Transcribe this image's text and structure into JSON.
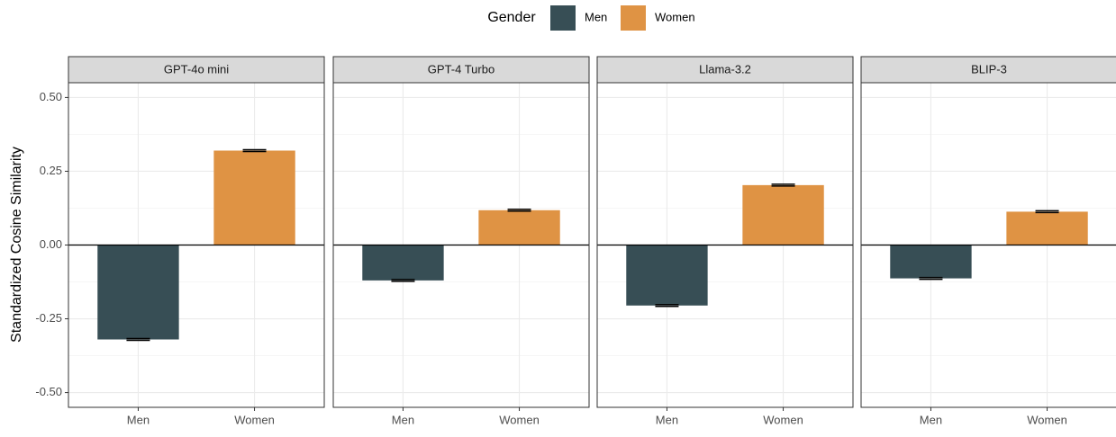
{
  "legend": {
    "title": "Gender",
    "entries": [
      {
        "name": "Men",
        "color": "#374e55"
      },
      {
        "name": "Women",
        "color": "#df9344"
      }
    ]
  },
  "ylabel": "Standardized Cosine Similarity",
  "chart_data": [
    {
      "type": "bar",
      "title": "GPT-4o mini",
      "categories": [
        "Men",
        "Women"
      ],
      "values": [
        -0.32,
        0.32
      ],
      "errors": [
        0.003,
        0.003
      ],
      "colors": [
        "#374e55",
        "#df9344"
      ],
      "ylim": [
        -0.55,
        0.55
      ],
      "yticks": [
        {
          "value": -0.5,
          "label": "-0.50"
        },
        {
          "value": -0.25,
          "label": "-0.25"
        },
        {
          "value": 0,
          "label": "0.00"
        },
        {
          "value": 0.25,
          "label": "0.25"
        },
        {
          "value": 0.5,
          "label": "0.50"
        }
      ],
      "minor_grid": [
        -0.375,
        -0.125,
        0.125,
        0.375
      ],
      "grid": true
    },
    {
      "type": "bar",
      "title": "GPT-4 Turbo",
      "categories": [
        "Men",
        "Women"
      ],
      "values": [
        -0.12,
        0.118
      ],
      "errors": [
        0.003,
        0.003
      ],
      "colors": [
        "#374e55",
        "#df9344"
      ],
      "ylim": [
        -0.55,
        0.55
      ],
      "minor_grid": [
        -0.375,
        -0.125,
        0.125,
        0.375
      ],
      "grid": true
    },
    {
      "type": "bar",
      "title": "Llama-3.2",
      "categories": [
        "Men",
        "Women"
      ],
      "values": [
        -0.205,
        0.203
      ],
      "errors": [
        0.003,
        0.003
      ],
      "colors": [
        "#374e55",
        "#df9344"
      ],
      "ylim": [
        -0.55,
        0.55
      ],
      "minor_grid": [
        -0.375,
        -0.125,
        0.125,
        0.375
      ],
      "grid": true
    },
    {
      "type": "bar",
      "title": "BLIP-3",
      "categories": [
        "Men",
        "Women"
      ],
      "values": [
        -0.113,
        0.113
      ],
      "errors": [
        0.003,
        0.003
      ],
      "colors": [
        "#374e55",
        "#df9344"
      ],
      "ylim": [
        -0.55,
        0.55
      ],
      "minor_grid": [
        -0.375,
        -0.125,
        0.125,
        0.375
      ],
      "grid": true
    }
  ]
}
